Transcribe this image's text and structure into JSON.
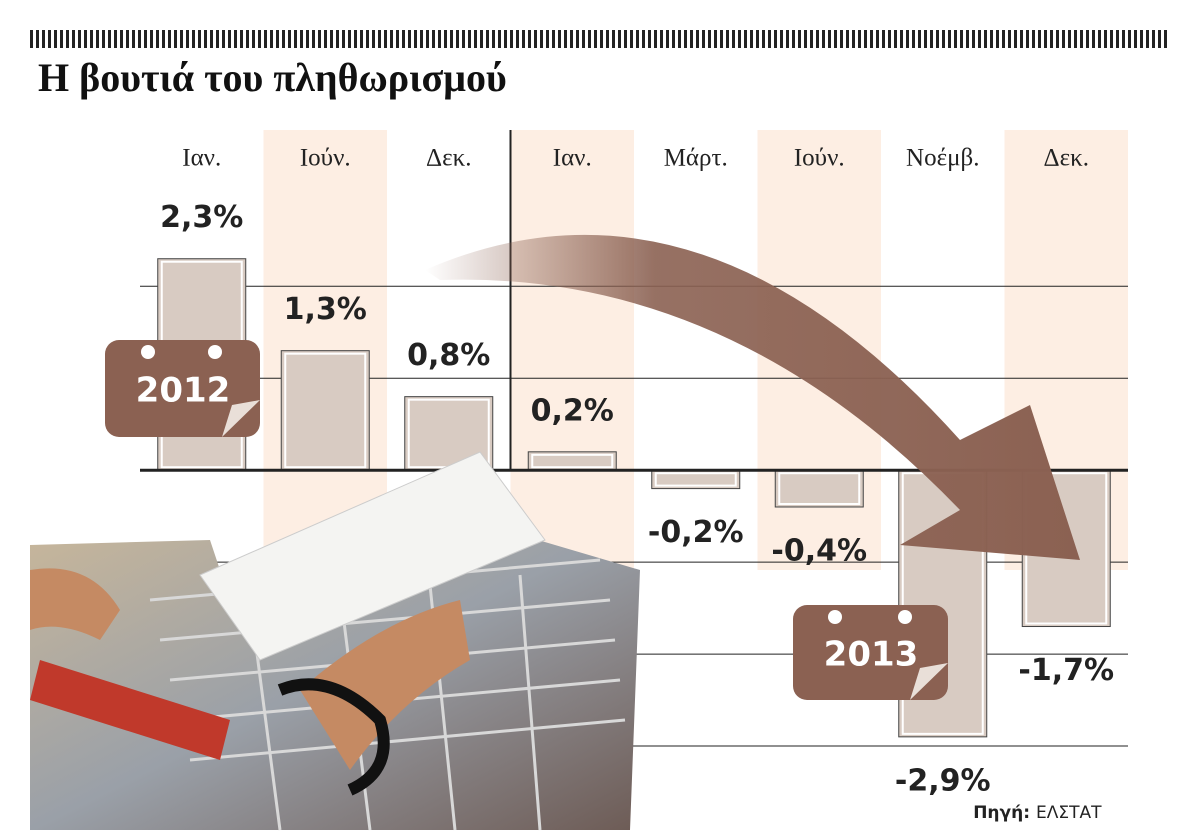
{
  "chart_data": {
    "type": "bar",
    "title": "Η βουτιά του πληθωρισμού",
    "categories": [
      "Ιαν.",
      "Ιούν.",
      "Δεκ.",
      "Ιαν.",
      "Μάρτ.",
      "Ιούν.",
      "Νοέμβ.",
      "Δεκ."
    ],
    "values": [
      2.3,
      1.3,
      0.8,
      0.2,
      -0.2,
      -0.4,
      -2.9,
      -1.7
    ],
    "value_labels": [
      "2,3%",
      "1,3%",
      "0,8%",
      "0,2%",
      "-0,2%",
      "-0,4%",
      "-2,9%",
      "-1,7%"
    ],
    "color": "#d8cbc2",
    "ylim": [
      -4,
      3.7
    ],
    "yticks": [
      -3,
      -2,
      -1,
      0,
      1,
      2
    ],
    "grid": true,
    "annotations": [
      "2012",
      "2013"
    ],
    "source_label": "Πηγή:",
    "source": "ΕΛΣΤΑΤ"
  }
}
